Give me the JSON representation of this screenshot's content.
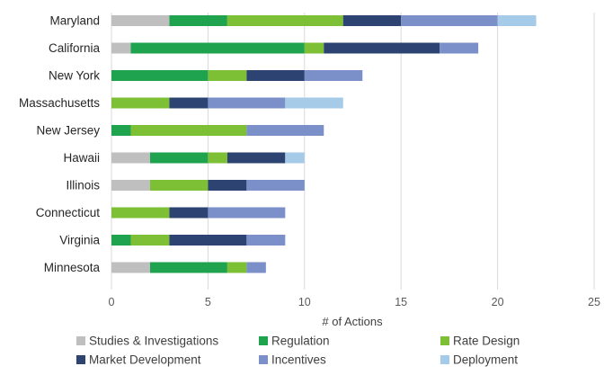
{
  "chart_data": {
    "type": "bar",
    "orientation": "horizontal",
    "stacked": true,
    "title": "",
    "xlabel": "# of Actions",
    "ylabel": "",
    "xlim": [
      0,
      25
    ],
    "x_ticks": [
      0,
      5,
      10,
      15,
      20,
      25
    ],
    "grid": "vertical",
    "legend_position": "bottom",
    "categories": [
      "Maryland",
      "California",
      "New York",
      "Massachusetts",
      "New Jersey",
      "Hawaii",
      "Illinois",
      "Connecticut",
      "Virginia",
      "Minnesota"
    ],
    "series": [
      {
        "name": "Studies & Investigations",
        "color": "#bfbfbf",
        "values": [
          3,
          1,
          0,
          0,
          0,
          2,
          2,
          0,
          0,
          2
        ]
      },
      {
        "name": "Regulation",
        "color": "#1fa34f",
        "values": [
          3,
          9,
          5,
          0,
          1,
          3,
          0,
          0,
          1,
          4
        ]
      },
      {
        "name": "Rate Design",
        "color": "#7dbf35",
        "values": [
          6,
          1,
          2,
          3,
          6,
          1,
          3,
          3,
          2,
          1
        ]
      },
      {
        "name": "Market Development",
        "color": "#2d4472",
        "values": [
          3,
          6,
          3,
          2,
          0,
          3,
          2,
          2,
          4,
          0
        ]
      },
      {
        "name": "Incentives",
        "color": "#7b8fc8",
        "values": [
          5,
          2,
          3,
          4,
          4,
          0,
          3,
          4,
          2,
          1
        ]
      },
      {
        "name": "Deployment",
        "color": "#a6cbe8",
        "values": [
          2,
          0,
          0,
          3,
          0,
          1,
          0,
          0,
          0,
          0
        ]
      }
    ]
  }
}
